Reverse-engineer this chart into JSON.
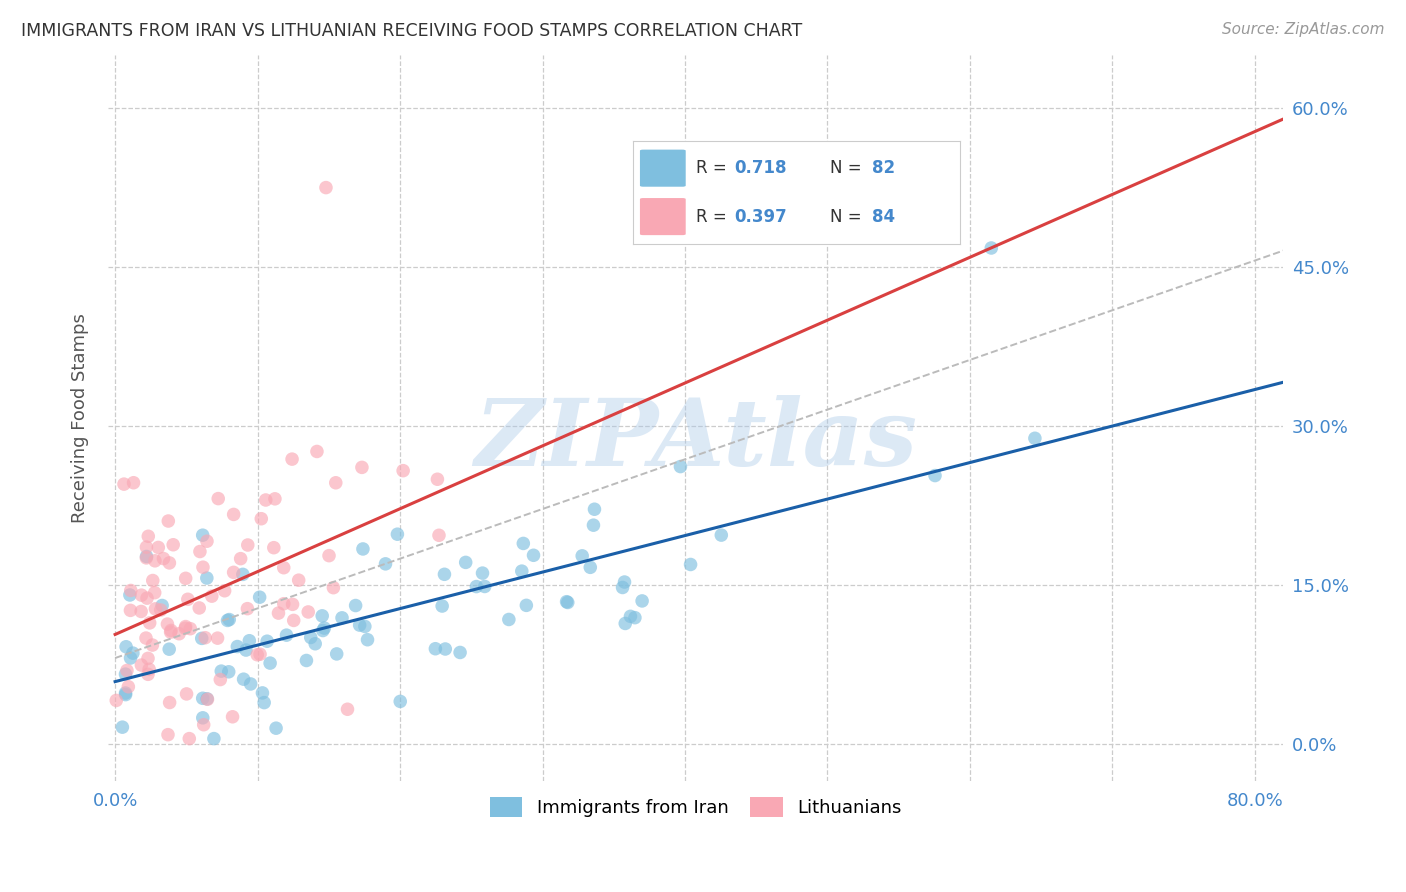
{
  "title": "IMMIGRANTS FROM IRAN VS LITHUANIAN RECEIVING FOOD STAMPS CORRELATION CHART",
  "source": "Source: ZipAtlas.com",
  "ylabel": "Receiving Food Stamps",
  "watermark": "ZIPAtlas",
  "watermark_color": "#a8c8e8",
  "legend_blue_label": "Immigrants from Iran",
  "legend_pink_label": "Lithuanians",
  "blue_R": 0.718,
  "blue_N": 82,
  "pink_R": 0.397,
  "pink_N": 84,
  "blue_dot_color": "#7fbfdf",
  "pink_dot_color": "#f9a8b4",
  "regression_blue_color": "#1a5fa8",
  "regression_pink_color": "#d94040",
  "regression_dashed_color": "#bbbbbb",
  "background_color": "#ffffff",
  "grid_color": "#cccccc",
  "title_color": "#333333",
  "axis_label_color": "#4488cc",
  "xlim": [
    -0.005,
    0.82
  ],
  "ylim": [
    -0.035,
    0.65
  ],
  "ytick_vals": [
    0.0,
    0.15,
    0.3,
    0.45,
    0.6
  ],
  "xtick_vals": [
    0.0,
    0.8
  ],
  "xtick_minor_vals": [
    0.1,
    0.2,
    0.3,
    0.4,
    0.5,
    0.6,
    0.7
  ]
}
